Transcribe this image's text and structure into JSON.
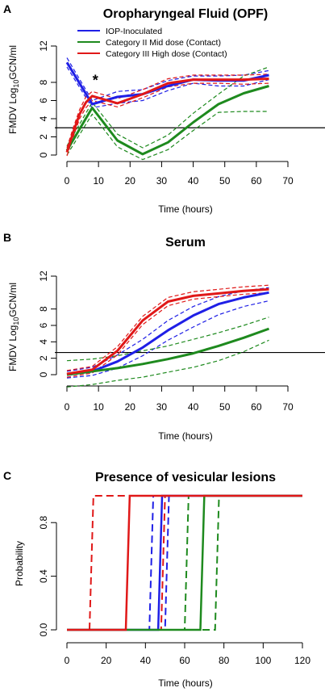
{
  "colors": {
    "iop": "#1f1fe6",
    "mid": "#1e8a1e",
    "high": "#e01818",
    "axis": "#000000"
  },
  "chart_data": [
    {
      "panel": "A",
      "type": "line",
      "title": "Oropharyngeal Fluid (OPF)",
      "xlabel": "Time (hours)",
      "ylabel": "FMDV Log10GCN/ml",
      "ylabel_main": "FMDV Log",
      "ylabel_sub": "10",
      "ylabel_tail": "GCN/ml",
      "xlim": [
        0,
        70
      ],
      "ylim": [
        0,
        12
      ],
      "xticks": [
        0,
        10,
        20,
        30,
        40,
        50,
        60,
        70
      ],
      "yticks": [
        0,
        2,
        4,
        6,
        8,
        12
      ],
      "hline": 3,
      "annotation": {
        "text": "*",
        "x": 9,
        "y": 7.7
      },
      "legend": [
        {
          "label": "IOP-Inoculated",
          "color_key": "iop"
        },
        {
          "label": "Category II Mid dose (Contact)",
          "color_key": "mid"
        },
        {
          "label": "Category III High dose (Contact)",
          "color_key": "high"
        }
      ],
      "series": [
        {
          "name": "IOP-Inoculated",
          "color_key": "iop",
          "x": [
            0,
            8,
            16,
            24,
            32,
            40,
            48,
            56,
            64
          ],
          "values": [
            10.2,
            5.6,
            6.4,
            6.7,
            7.6,
            8.3,
            8.2,
            8.2,
            8.8
          ],
          "lower": [
            9.7,
            5.2,
            5.7,
            6.0,
            7.1,
            7.9,
            7.6,
            7.6,
            8.3
          ],
          "upper": [
            10.7,
            6.0,
            7.0,
            7.2,
            8.2,
            8.7,
            8.7,
            8.8,
            9.3
          ]
        },
        {
          "name": "Category II Mid dose (Contact)",
          "color_key": "mid",
          "x": [
            0,
            8,
            16,
            24,
            32,
            40,
            48,
            56,
            64
          ],
          "values": [
            0.5,
            5.2,
            1.6,
            0.1,
            1.4,
            3.6,
            5.6,
            6.8,
            7.6
          ],
          "lower": [
            0.0,
            4.5,
            0.9,
            -0.5,
            0.6,
            2.7,
            4.7,
            4.8,
            4.8
          ],
          "upper": [
            1.0,
            5.8,
            2.3,
            0.8,
            2.2,
            4.6,
            6.7,
            8.7,
            9.7
          ]
        },
        {
          "name": "Category III High dose (Contact)",
          "color_key": "high",
          "x": [
            0,
            2,
            4,
            6,
            8,
            16,
            24,
            32,
            40,
            48,
            56,
            64
          ],
          "values": [
            0.3,
            2.5,
            4.5,
            5.8,
            6.5,
            5.7,
            6.7,
            7.9,
            8.3,
            8.3,
            8.3,
            8.4
          ],
          "lower": [
            -0.1,
            2.0,
            4.0,
            5.2,
            6.0,
            5.3,
            6.3,
            7.5,
            7.9,
            7.9,
            7.8,
            7.9
          ],
          "upper": [
            0.8,
            3.0,
            5.0,
            6.4,
            7.0,
            6.2,
            7.2,
            8.4,
            8.8,
            8.8,
            8.8,
            8.9
          ]
        }
      ]
    },
    {
      "panel": "B",
      "type": "line",
      "title": "Serum",
      "xlabel": "Time (hours)",
      "ylabel": "FMDV Log10GCN/ml",
      "ylabel_main": "FMDV Log",
      "ylabel_sub": "10",
      "ylabel_tail": "GCN/ml",
      "xlim": [
        0,
        70
      ],
      "ylim": [
        0,
        12
      ],
      "xticks": [
        0,
        10,
        20,
        30,
        40,
        50,
        60,
        70
      ],
      "yticks": [
        0,
        2,
        4,
        6,
        8,
        12
      ],
      "hline": 2.7,
      "series": [
        {
          "name": "IOP-Inoculated",
          "color_key": "iop",
          "x": [
            0,
            8,
            16,
            24,
            32,
            40,
            48,
            56,
            64
          ],
          "values": [
            0.0,
            0.4,
            1.6,
            3.3,
            5.4,
            7.2,
            8.6,
            9.4,
            10.0
          ],
          "lower": [
            -0.4,
            -0.1,
            0.8,
            2.3,
            4.2,
            5.8,
            7.3,
            8.3,
            9.0
          ],
          "upper": [
            0.4,
            0.9,
            2.4,
            4.3,
            6.6,
            8.3,
            9.5,
            10.2,
            10.6
          ]
        },
        {
          "name": "Category II Mid dose (Contact)",
          "color_key": "mid",
          "x": [
            0,
            8,
            16,
            24,
            32,
            40,
            48,
            56,
            64
          ],
          "values": [
            0.0,
            0.4,
            0.8,
            1.3,
            1.9,
            2.6,
            3.5,
            4.5,
            5.6
          ],
          "lower": [
            -1.5,
            -1.2,
            -0.7,
            -0.3,
            0.3,
            0.9,
            1.7,
            2.8,
            4.2
          ],
          "upper": [
            1.7,
            1.9,
            2.3,
            2.9,
            3.5,
            4.3,
            5.1,
            6.0,
            7.0
          ]
        },
        {
          "name": "Category III High dose (Contact)",
          "color_key": "high",
          "x": [
            0,
            8,
            16,
            24,
            32,
            40,
            48,
            56,
            64
          ],
          "values": [
            0.1,
            0.6,
            2.9,
            6.6,
            8.9,
            9.6,
            9.9,
            10.2,
            10.4
          ],
          "lower": [
            -0.3,
            0.2,
            2.4,
            6.1,
            8.4,
            9.2,
            9.5,
            9.8,
            10.0
          ],
          "upper": [
            0.5,
            1.0,
            3.4,
            7.1,
            9.4,
            10.1,
            10.4,
            10.7,
            10.9
          ]
        }
      ]
    },
    {
      "panel": "C",
      "type": "line",
      "title": "Presence of vesicular lesions",
      "xlabel": "Time (hours)",
      "ylabel": "Probability",
      "xlim": [
        0,
        120
      ],
      "ylim": [
        0,
        1
      ],
      "xticks": [
        0,
        20,
        40,
        60,
        80,
        100,
        120
      ],
      "yticks": [
        0.0,
        0.4,
        0.8
      ],
      "ytick_labels": [
        "0.0",
        "0.4",
        "0.8"
      ],
      "series": [
        {
          "name": "IOP-Inoculated",
          "color_key": "iop",
          "step_x": 47.5,
          "ci_steps_x": [
            43,
            51
          ],
          "start_x": 0,
          "end_x": 120
        },
        {
          "name": "Category II Mid dose (Contact)",
          "color_key": "mid",
          "step_x": 69,
          "ci_steps_x": [
            61,
            76.5
          ],
          "start_x": 0,
          "end_x": 120
        },
        {
          "name": "Category III High dose (Contact)",
          "color_key": "high",
          "step_x": 31,
          "ci_steps_x": [
            12.5,
            49
          ],
          "start_x": 0,
          "end_x": 120
        }
      ]
    }
  ]
}
